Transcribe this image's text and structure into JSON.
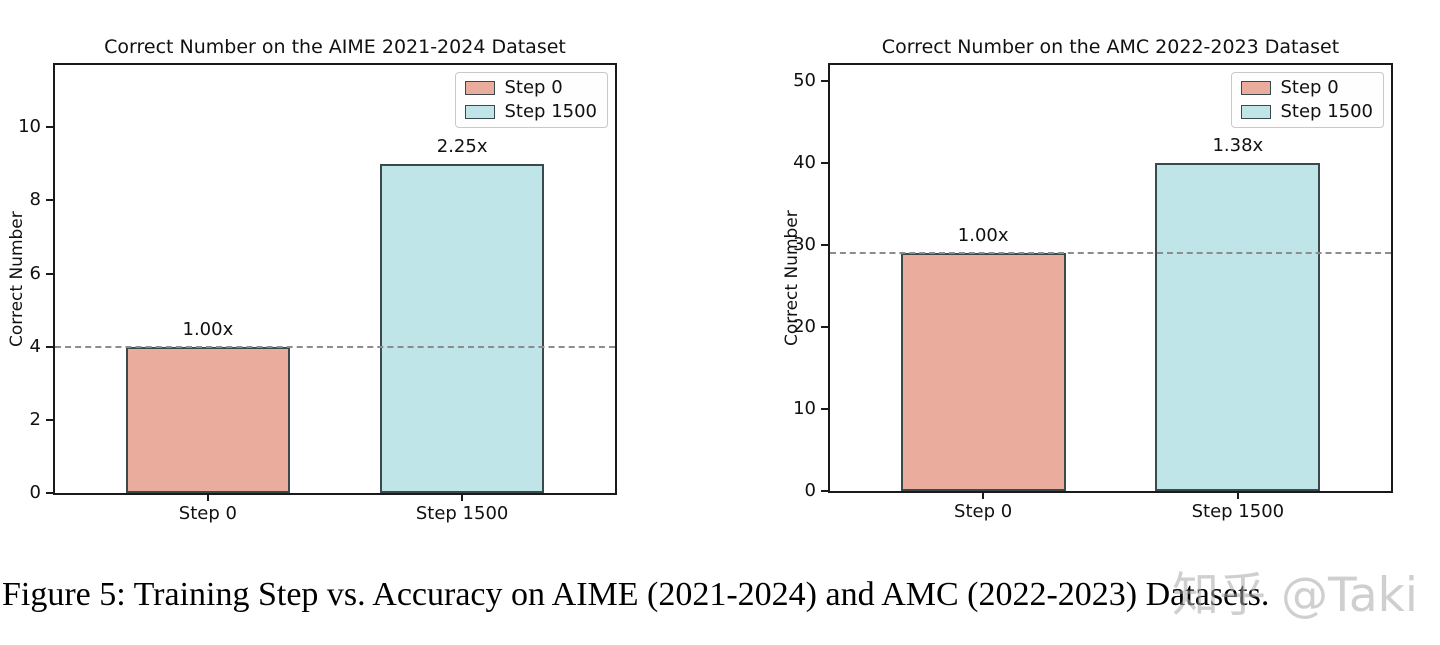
{
  "figure": {
    "caption": "Figure 5: Training Step vs. Accuracy on AIME (2021-2024) and AMC (2022-2023) Datasets.",
    "watermark": "知乎 @Taki"
  },
  "colors": {
    "step0_fill": "#EAAD9D",
    "step1500_fill": "#BFE5E8",
    "bar_edge": "#3A4A4C",
    "baseline_dash": "#8C8C8C",
    "axis_text": "#111111",
    "legend_border": "#C9C9C9"
  },
  "chart_data": [
    {
      "type": "bar",
      "title": "Correct Number on the AIME 2021-2024 Dataset",
      "xlabel": "",
      "ylabel": "Correct Number",
      "categories": [
        "Step 0",
        "Step 1500"
      ],
      "values": [
        4,
        9
      ],
      "bar_labels": [
        "1.00x",
        "2.25x"
      ],
      "bar_colors": [
        "#EAAD9D",
        "#BFE5E8"
      ],
      "legend": [
        "Step 0",
        "Step 1500"
      ],
      "legend_position": "top-right",
      "yticks": [
        0,
        2,
        4,
        6,
        8,
        10
      ],
      "ylim": [
        0,
        11.7
      ],
      "baseline_y": 4,
      "baseline_style": "dashed",
      "grid": false
    },
    {
      "type": "bar",
      "title": "Correct Number on the AMC 2022-2023 Dataset",
      "xlabel": "",
      "ylabel": "Correct Number",
      "categories": [
        "Step 0",
        "Step 1500"
      ],
      "values": [
        29,
        40
      ],
      "bar_labels": [
        "1.00x",
        "1.38x"
      ],
      "bar_colors": [
        "#EAAD9D",
        "#BFE5E8"
      ],
      "legend": [
        "Step 0",
        "Step 1500"
      ],
      "legend_position": "top-right",
      "yticks": [
        0,
        10,
        20,
        30,
        40,
        50
      ],
      "ylim": [
        0,
        52
      ],
      "baseline_y": 29,
      "baseline_style": "dashed",
      "grid": false
    }
  ]
}
